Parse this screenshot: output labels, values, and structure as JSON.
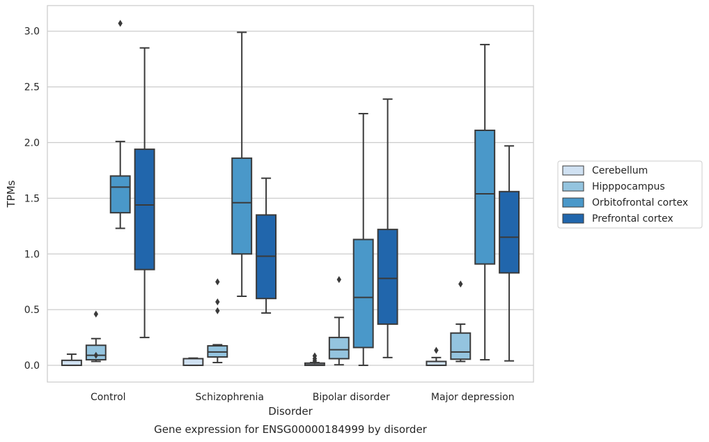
{
  "chart_data": {
    "type": "box",
    "title": "Gene expression for ENSG00000184999 by disorder",
    "xlabel": "Disorder",
    "ylabel": "TPMs",
    "ylim": [
      -0.15,
      3.23
    ],
    "yticks": [
      "0.0",
      "0.5",
      "1.0",
      "1.5",
      "2.0",
      "2.5",
      "3.0"
    ],
    "grid": true,
    "legend_position": "right",
    "categories": [
      "Control",
      "Schizophrenia",
      "Bipolar disorder",
      "Major depression"
    ],
    "series": [
      {
        "name": "Cerebellum",
        "color": "#d0e1f2",
        "boxes": [
          {
            "whislo": 0.0,
            "q1": 0.0,
            "med": 0.0,
            "q3": 0.045,
            "whishi": 0.1,
            "fliers": []
          },
          {
            "whislo": 0.0,
            "q1": 0.0,
            "med": 0.0,
            "q3": 0.06,
            "whishi": 0.065,
            "fliers": []
          },
          {
            "whislo": 0.0,
            "q1": 0.0,
            "med": 0.005,
            "q3": 0.02,
            "whishi": 0.025,
            "fliers": [
              0.04,
              0.06,
              0.085
            ]
          },
          {
            "whislo": 0.0,
            "q1": 0.0,
            "med": 0.0,
            "q3": 0.035,
            "whishi": 0.07,
            "fliers": [
              0.135
            ]
          }
        ]
      },
      {
        "name": "Hipppocampus",
        "color": "#94c4df",
        "boxes": [
          {
            "whislo": 0.035,
            "q1": 0.05,
            "med": 0.09,
            "q3": 0.18,
            "whishi": 0.24,
            "fliers": [
              0.46,
              0.09
            ]
          },
          {
            "whislo": 0.025,
            "q1": 0.075,
            "med": 0.12,
            "q3": 0.175,
            "whishi": 0.185,
            "fliers": [
              0.75,
              0.57,
              0.49
            ]
          },
          {
            "whislo": 0.005,
            "q1": 0.06,
            "med": 0.14,
            "q3": 0.25,
            "whishi": 0.43,
            "fliers": [
              0.77
            ]
          },
          {
            "whislo": 0.035,
            "q1": 0.055,
            "med": 0.12,
            "q3": 0.29,
            "whishi": 0.37,
            "fliers": [
              0.73
            ]
          }
        ]
      },
      {
        "name": "Orbitofrontal cortex",
        "color": "#4a98c9",
        "boxes": [
          {
            "whislo": 1.23,
            "q1": 1.37,
            "med": 1.6,
            "q3": 1.7,
            "whishi": 2.01,
            "fliers": [
              3.07
            ]
          },
          {
            "whislo": 0.62,
            "q1": 1.0,
            "med": 1.46,
            "q3": 1.86,
            "whishi": 2.99,
            "fliers": []
          },
          {
            "whislo": 0.0,
            "q1": 0.16,
            "med": 0.61,
            "q3": 1.13,
            "whishi": 2.26,
            "fliers": []
          },
          {
            "whislo": 0.05,
            "q1": 0.91,
            "med": 1.54,
            "q3": 2.11,
            "whishi": 2.88,
            "fliers": []
          }
        ]
      },
      {
        "name": "Prefrontal cortex",
        "color": "#2166ac",
        "boxes": [
          {
            "whislo": 0.25,
            "q1": 0.86,
            "med": 1.44,
            "q3": 1.94,
            "whishi": 2.85,
            "fliers": []
          },
          {
            "whislo": 0.47,
            "q1": 0.6,
            "med": 0.98,
            "q3": 1.35,
            "whishi": 1.68,
            "fliers": []
          },
          {
            "whislo": 0.07,
            "q1": 0.37,
            "med": 0.78,
            "q3": 1.22,
            "whishi": 2.39,
            "fliers": []
          },
          {
            "whislo": 0.04,
            "q1": 0.83,
            "med": 1.15,
            "q3": 1.56,
            "whishi": 1.97,
            "fliers": []
          }
        ]
      }
    ]
  }
}
